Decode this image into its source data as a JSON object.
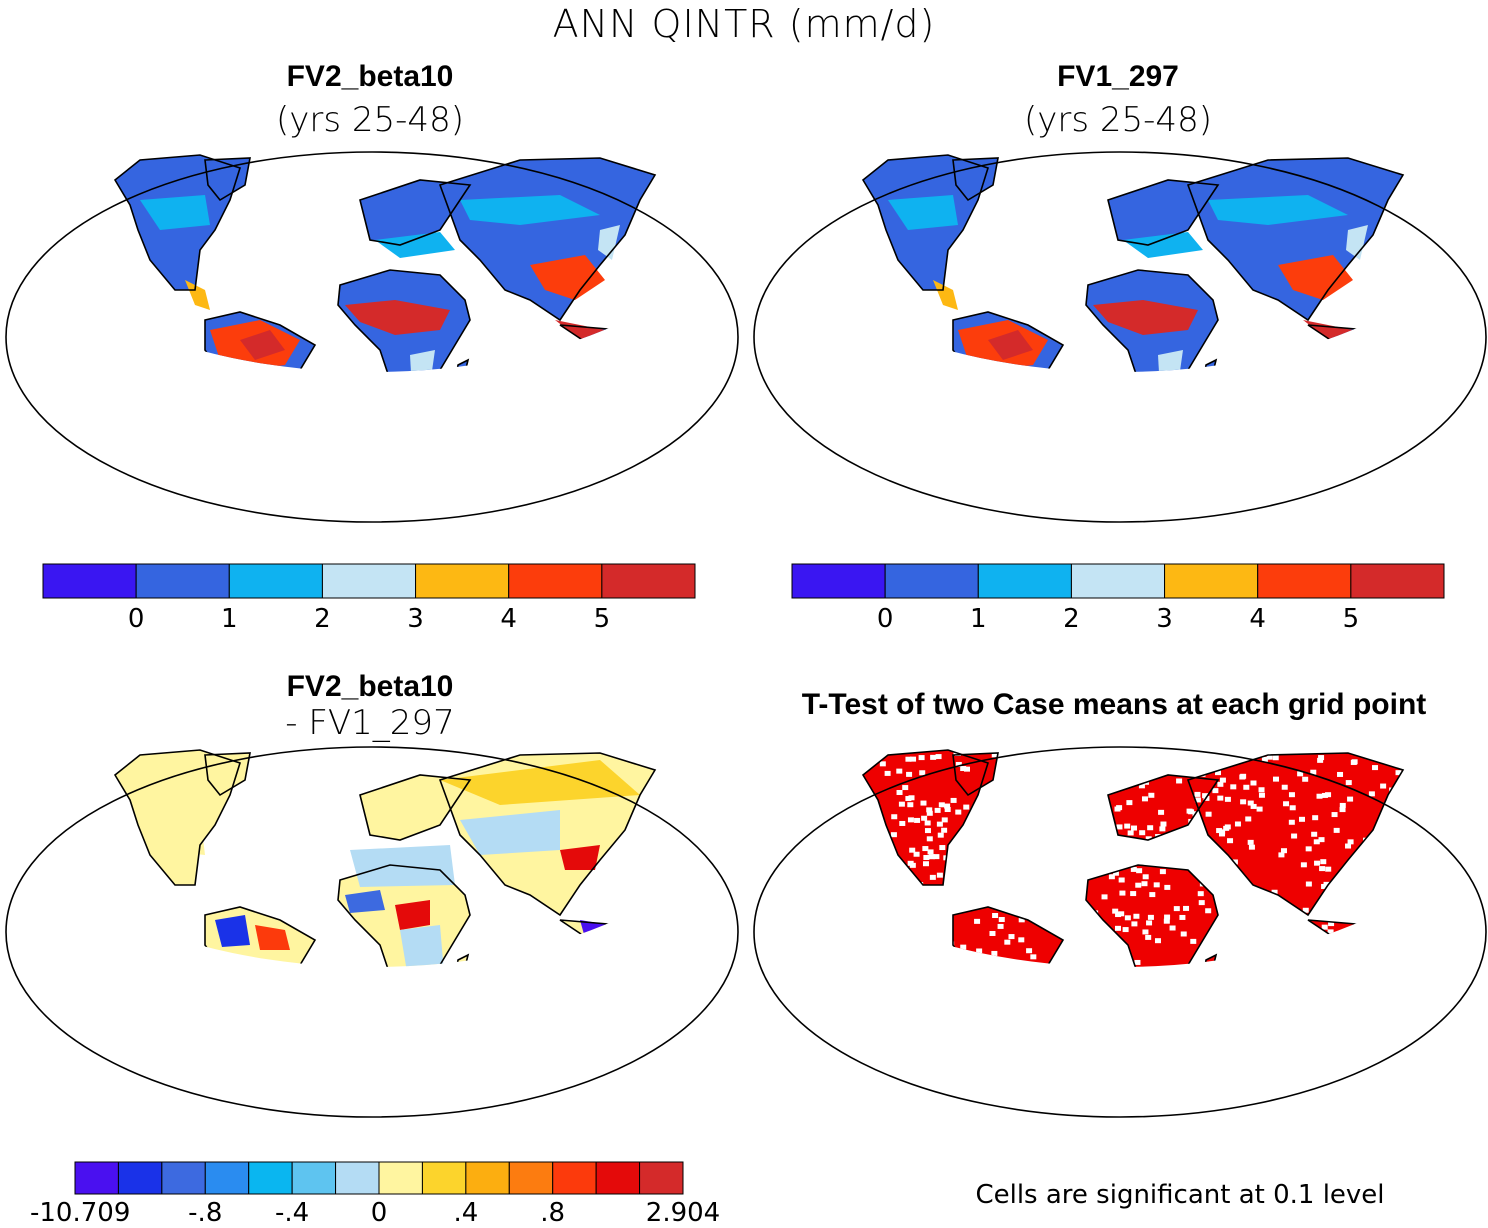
{
  "figure_title": "ANN QINTR (mm/d)",
  "panels": [
    {
      "id": "case1",
      "title": "FV2_beta10",
      "subtitle": "(yrs 25-48)"
    },
    {
      "id": "case2",
      "title": "FV1_297",
      "subtitle": "(yrs 25-48)"
    },
    {
      "id": "diff",
      "title": "FV2_beta10",
      "subtitle": "- FV1_297"
    },
    {
      "id": "ttest",
      "title": "T-Test of two Case means at each grid point",
      "subtitle": ""
    }
  ],
  "colorbar_main": {
    "colors": [
      "#3a16f2",
      "#3565e0",
      "#0fb2f0",
      "#c4e4f4",
      "#fdb813",
      "#fc3d0c",
      "#d42a2a"
    ],
    "labels": [
      "0",
      "1",
      "2",
      "3",
      "4",
      "5"
    ]
  },
  "colorbar_diff": {
    "colors": [
      "#4a10f0",
      "#1a32e8",
      "#3d6ae0",
      "#2a8cf0",
      "#0ab6f0",
      "#5ec4f0",
      "#b4dcf4",
      "#fff5a0",
      "#fcd42c",
      "#fcae10",
      "#fc7c10",
      "#fc3a0c",
      "#e40a0a",
      "#d42a2a"
    ],
    "labels": [
      "-10.709",
      "-.8",
      "-.4",
      "0",
      ".4",
      ".8",
      "2.904"
    ]
  },
  "ttest_note": "Cells are significant at 0.1 level",
  "ttest_color": "#ee0000",
  "land_fill": {
    "case1": "#3565e0",
    "case2": "#3565e0",
    "diff": "#fff5a0",
    "ttest": "#ee0000"
  }
}
